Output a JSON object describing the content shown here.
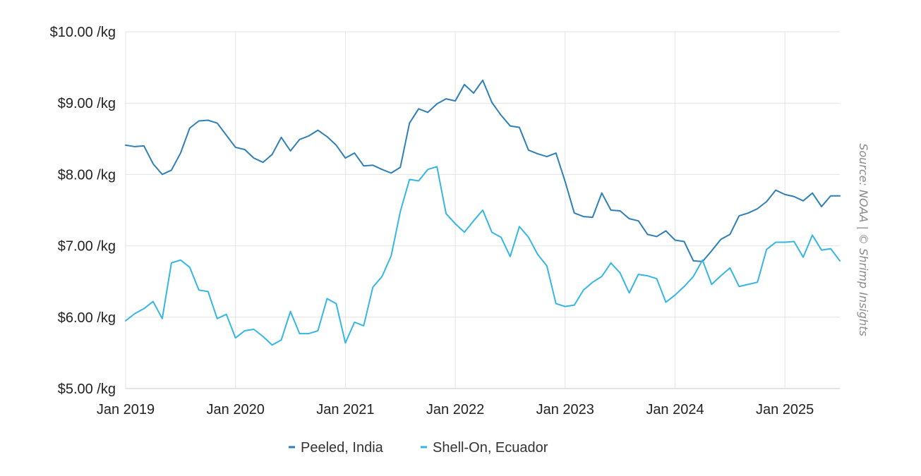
{
  "chart_data": {
    "type": "line",
    "x_axis": {
      "start": "2019-01",
      "end": "2025-07",
      "ticks": [
        {
          "date": "2019-01",
          "label": "Jan 2019"
        },
        {
          "date": "2020-01",
          "label": "Jan 2020"
        },
        {
          "date": "2021-01",
          "label": "Jan 2021"
        },
        {
          "date": "2022-01",
          "label": "Jan 2022"
        },
        {
          "date": "2023-01",
          "label": "Jan 2023"
        },
        {
          "date": "2024-01",
          "label": "Jan 2024"
        },
        {
          "date": "2025-01",
          "label": "Jan 2025"
        }
      ]
    },
    "y_axis": {
      "min": 5,
      "max": 10,
      "ticks": [
        {
          "value": 5,
          "label": "$5.00 /kg"
        },
        {
          "value": 6,
          "label": "$6.00 /kg"
        },
        {
          "value": 7,
          "label": "$7.00 /kg"
        },
        {
          "value": 8,
          "label": "$8.00 /kg"
        },
        {
          "value": 9,
          "label": "$9.00 /kg"
        },
        {
          "value": 10,
          "label": "$10.00 /kg"
        }
      ]
    },
    "grid": true,
    "legend_position": "bottom-center",
    "series": [
      {
        "name": "Peeled, India",
        "color": "#2e7fb8",
        "points": [
          [
            "2019-01",
            8.41
          ],
          [
            "2019-02",
            8.39
          ],
          [
            "2019-03",
            8.4
          ],
          [
            "2019-04",
            8.15
          ],
          [
            "2019-05",
            8.0
          ],
          [
            "2019-06",
            8.06
          ],
          [
            "2019-07",
            8.3
          ],
          [
            "2019-08",
            8.65
          ],
          [
            "2019-09",
            8.75
          ],
          [
            "2019-10",
            8.76
          ],
          [
            "2019-11",
            8.72
          ],
          [
            "2019-12",
            8.55
          ],
          [
            "2020-01",
            8.38
          ],
          [
            "2020-02",
            8.35
          ],
          [
            "2020-03",
            8.23
          ],
          [
            "2020-04",
            8.17
          ],
          [
            "2020-05",
            8.28
          ],
          [
            "2020-06",
            8.52
          ],
          [
            "2020-07",
            8.33
          ],
          [
            "2020-08",
            8.49
          ],
          [
            "2020-09",
            8.54
          ],
          [
            "2020-10",
            8.62
          ],
          [
            "2020-11",
            8.53
          ],
          [
            "2020-12",
            8.41
          ],
          [
            "2021-01",
            8.23
          ],
          [
            "2021-02",
            8.3
          ],
          [
            "2021-03",
            8.12
          ],
          [
            "2021-04",
            8.13
          ],
          [
            "2021-05",
            8.07
          ],
          [
            "2021-06",
            8.02
          ],
          [
            "2021-07",
            8.1
          ],
          [
            "2021-08",
            8.72
          ],
          [
            "2021-09",
            8.92
          ],
          [
            "2021-10",
            8.87
          ],
          [
            "2021-11",
            8.99
          ],
          [
            "2021-12",
            9.06
          ],
          [
            "2022-01",
            9.03
          ],
          [
            "2022-02",
            9.26
          ],
          [
            "2022-03",
            9.14
          ],
          [
            "2022-04",
            9.32
          ],
          [
            "2022-05",
            9.01
          ],
          [
            "2022-06",
            8.83
          ],
          [
            "2022-07",
            8.68
          ],
          [
            "2022-08",
            8.66
          ],
          [
            "2022-09",
            8.34
          ],
          [
            "2022-10",
            8.29
          ],
          [
            "2022-11",
            8.25
          ],
          [
            "2022-12",
            8.3
          ],
          [
            "2023-01",
            7.9
          ],
          [
            "2023-02",
            7.46
          ],
          [
            "2023-03",
            7.41
          ],
          [
            "2023-04",
            7.4
          ],
          [
            "2023-05",
            7.74
          ],
          [
            "2023-06",
            7.5
          ],
          [
            "2023-07",
            7.49
          ],
          [
            "2023-08",
            7.38
          ],
          [
            "2023-09",
            7.35
          ],
          [
            "2023-10",
            7.16
          ],
          [
            "2023-11",
            7.13
          ],
          [
            "2023-12",
            7.21
          ],
          [
            "2024-01",
            7.08
          ],
          [
            "2024-02",
            7.06
          ],
          [
            "2024-03",
            6.79
          ],
          [
            "2024-04",
            6.78
          ],
          [
            "2024-05",
            6.93
          ],
          [
            "2024-06",
            7.09
          ],
          [
            "2024-07",
            7.16
          ],
          [
            "2024-08",
            7.42
          ],
          [
            "2024-09",
            7.46
          ],
          [
            "2024-10",
            7.52
          ],
          [
            "2024-11",
            7.62
          ],
          [
            "2024-12",
            7.78
          ],
          [
            "2025-01",
            7.72
          ],
          [
            "2025-02",
            7.69
          ],
          [
            "2025-03",
            7.63
          ],
          [
            "2025-04",
            7.74
          ],
          [
            "2025-05",
            7.55
          ],
          [
            "2025-06",
            7.7
          ],
          [
            "2025-07",
            7.7
          ]
        ]
      },
      {
        "name": "Shell-On, Ecuador",
        "color": "#35b6e4",
        "points": [
          [
            "2019-01",
            5.95
          ],
          [
            "2019-02",
            6.05
          ],
          [
            "2019-03",
            6.12
          ],
          [
            "2019-04",
            6.22
          ],
          [
            "2019-05",
            5.98
          ],
          [
            "2019-06",
            6.76
          ],
          [
            "2019-07",
            6.8
          ],
          [
            "2019-08",
            6.7
          ],
          [
            "2019-09",
            6.38
          ],
          [
            "2019-10",
            6.36
          ],
          [
            "2019-11",
            5.98
          ],
          [
            "2019-12",
            6.04
          ],
          [
            "2020-01",
            5.71
          ],
          [
            "2020-02",
            5.81
          ],
          [
            "2020-03",
            5.83
          ],
          [
            "2020-04",
            5.73
          ],
          [
            "2020-05",
            5.61
          ],
          [
            "2020-06",
            5.68
          ],
          [
            "2020-07",
            6.08
          ],
          [
            "2020-08",
            5.77
          ],
          [
            "2020-09",
            5.77
          ],
          [
            "2020-10",
            5.81
          ],
          [
            "2020-11",
            6.26
          ],
          [
            "2020-12",
            6.19
          ],
          [
            "2021-01",
            5.64
          ],
          [
            "2021-02",
            5.93
          ],
          [
            "2021-03",
            5.88
          ],
          [
            "2021-04",
            6.42
          ],
          [
            "2021-05",
            6.57
          ],
          [
            "2021-06",
            6.86
          ],
          [
            "2021-07",
            7.48
          ],
          [
            "2021-08",
            7.93
          ],
          [
            "2021-09",
            7.91
          ],
          [
            "2021-10",
            8.07
          ],
          [
            "2021-11",
            8.11
          ],
          [
            "2021-12",
            7.45
          ],
          [
            "2022-01",
            7.31
          ],
          [
            "2022-02",
            7.19
          ],
          [
            "2022-03",
            7.35
          ],
          [
            "2022-04",
            7.5
          ],
          [
            "2022-05",
            7.19
          ],
          [
            "2022-06",
            7.12
          ],
          [
            "2022-07",
            6.85
          ],
          [
            "2022-08",
            7.27
          ],
          [
            "2022-09",
            7.12
          ],
          [
            "2022-10",
            6.88
          ],
          [
            "2022-11",
            6.72
          ],
          [
            "2022-12",
            6.19
          ],
          [
            "2023-01",
            6.15
          ],
          [
            "2023-02",
            6.17
          ],
          [
            "2023-03",
            6.38
          ],
          [
            "2023-04",
            6.49
          ],
          [
            "2023-05",
            6.57
          ],
          [
            "2023-06",
            6.76
          ],
          [
            "2023-07",
            6.62
          ],
          [
            "2023-08",
            6.34
          ],
          [
            "2023-09",
            6.6
          ],
          [
            "2023-10",
            6.58
          ],
          [
            "2023-11",
            6.54
          ],
          [
            "2023-12",
            6.21
          ],
          [
            "2024-01",
            6.31
          ],
          [
            "2024-02",
            6.43
          ],
          [
            "2024-03",
            6.57
          ],
          [
            "2024-04",
            6.8
          ],
          [
            "2024-05",
            6.46
          ],
          [
            "2024-06",
            6.58
          ],
          [
            "2024-07",
            6.69
          ],
          [
            "2024-08",
            6.43
          ],
          [
            "2024-09",
            6.46
          ],
          [
            "2024-10",
            6.49
          ],
          [
            "2024-11",
            6.95
          ],
          [
            "2024-12",
            7.05
          ],
          [
            "2025-01",
            7.05
          ],
          [
            "2025-02",
            7.06
          ],
          [
            "2025-03",
            6.84
          ],
          [
            "2025-04",
            7.15
          ],
          [
            "2025-05",
            6.94
          ],
          [
            "2025-06",
            6.96
          ],
          [
            "2025-07",
            6.79
          ]
        ]
      }
    ]
  },
  "source_note": "Source: NOAA | © Shrimp Insights"
}
